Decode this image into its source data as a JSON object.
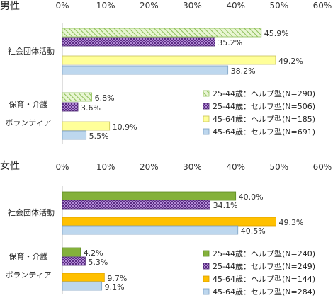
{
  "chart_data": [
    {
      "type": "bar",
      "orientation": "horizontal",
      "title": "男性",
      "x_ticks": [
        "0%",
        "10%",
        "20%",
        "30%",
        "40%",
        "50%",
        "60%"
      ],
      "xlim": [
        0,
        60
      ],
      "categories": [
        "社会団体活動",
        "保育・介護\nボランティア"
      ],
      "series": [
        {
          "name": "25-44歳：ヘルプ型(N=290)",
          "values": [
            45.9,
            6.8
          ],
          "labels": [
            "45.9%",
            "6.8%"
          ],
          "fill": "hatch-green"
        },
        {
          "name": "25-44歳：セルフ型(N=506)",
          "values": [
            35.2,
            3.6
          ],
          "labels": [
            "35.2%",
            "3.6%"
          ],
          "fill": "dots-purple"
        },
        {
          "name": "45-64歳：ヘルプ型(N=185)",
          "values": [
            49.2,
            10.9
          ],
          "labels": [
            "49.2%",
            "10.9%"
          ],
          "fill": "solid-yellow"
        },
        {
          "name": "45-64歳：セルフ型(N=691)",
          "values": [
            38.2,
            5.5
          ],
          "labels": [
            "38.2%",
            "5.5%"
          ],
          "fill": "solid-blue"
        }
      ]
    },
    {
      "type": "bar",
      "orientation": "horizontal",
      "title": "女性",
      "x_ticks": [
        "0%",
        "10%",
        "20%",
        "30%",
        "40%",
        "50%",
        "60%"
      ],
      "xlim": [
        0,
        60
      ],
      "categories": [
        "社会団体活動",
        "保育・介護\nボランティア"
      ],
      "series": [
        {
          "name": "25-44歳：ヘルプ型(N=240)",
          "values": [
            40.0,
            4.2
          ],
          "labels": [
            "40.0%",
            "4.2%"
          ],
          "fill": "hatch-green-solid"
        },
        {
          "name": "25-44歳：セルフ型(N=249)",
          "values": [
            34.1,
            5.3
          ],
          "labels": [
            "34.1%",
            "5.3%"
          ],
          "fill": "dots-purple"
        },
        {
          "name": "45-64歳：ヘルプ型(N=144)",
          "values": [
            49.3,
            9.7
          ],
          "labels": [
            "49.3%",
            "9.7%"
          ],
          "fill": "solid-yellow-orange"
        },
        {
          "name": "45-64歳：セルフ型(N=284)",
          "values": [
            40.5,
            9.1
          ],
          "labels": [
            "40.5%",
            "9.1%"
          ],
          "fill": "solid-blue"
        }
      ]
    }
  ]
}
